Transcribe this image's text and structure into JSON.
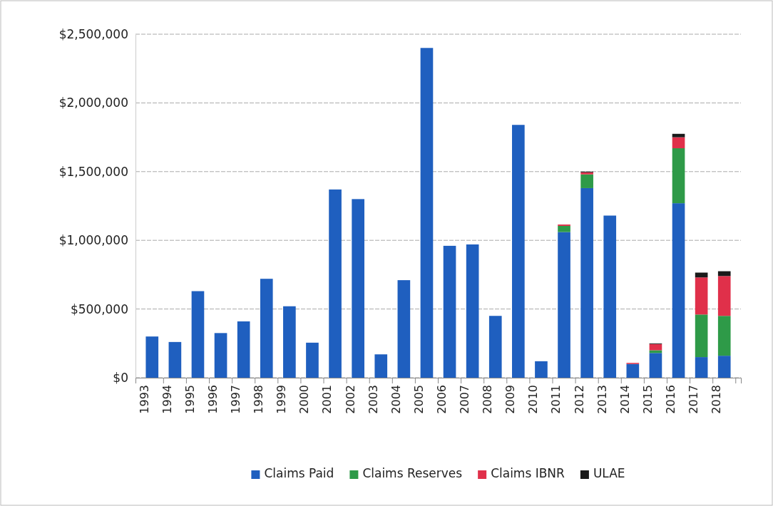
{
  "chart_data": {
    "type": "bar",
    "stacked": true,
    "categories": [
      "1993",
      "1994",
      "1995",
      "1996",
      "1997",
      "1998",
      "1999",
      "2000",
      "2001",
      "2002",
      "2003",
      "2004",
      "2005",
      "2006",
      "2007",
      "2008",
      "2009",
      "2010",
      "2011",
      "2012",
      "2013",
      "2014",
      "2015",
      "2016",
      "2017",
      "2018"
    ],
    "series": [
      {
        "name": "Claims Paid",
        "color": "#1f5fbf",
        "values": [
          300000,
          260000,
          630000,
          325000,
          410000,
          720000,
          520000,
          255000,
          1370000,
          1300000,
          170000,
          710000,
          2400000,
          960000,
          970000,
          450000,
          1840000,
          120000,
          1060000,
          1380000,
          1180000,
          100000,
          180000,
          1270000,
          150000,
          160000
        ]
      },
      {
        "name": "Claims Reserves",
        "color": "#2e9a48",
        "values": [
          0,
          0,
          0,
          0,
          0,
          0,
          0,
          0,
          0,
          0,
          0,
          0,
          0,
          0,
          0,
          0,
          0,
          0,
          45000,
          100000,
          0,
          0,
          20000,
          400000,
          310000,
          290000
        ]
      },
      {
        "name": "Claims IBNR",
        "color": "#e0304a",
        "values": [
          0,
          0,
          0,
          0,
          0,
          0,
          0,
          0,
          0,
          0,
          0,
          0,
          0,
          0,
          0,
          0,
          0,
          0,
          10000,
          15000,
          0,
          8000,
          45000,
          80000,
          270000,
          290000
        ]
      },
      {
        "name": "ULAE",
        "color": "#1a1a1a",
        "values": [
          0,
          0,
          0,
          0,
          0,
          0,
          0,
          0,
          0,
          0,
          0,
          0,
          0,
          0,
          0,
          0,
          0,
          0,
          0,
          5000,
          0,
          0,
          5000,
          25000,
          35000,
          35000
        ]
      }
    ],
    "ylim": [
      0,
      2500000
    ],
    "yticks": [
      {
        "value": 0,
        "label": "$0"
      },
      {
        "value": 500000,
        "label": "$500,000"
      },
      {
        "value": 1000000,
        "label": "$1,000,000"
      },
      {
        "value": 1500000,
        "label": "$1,500,000"
      },
      {
        "value": 2000000,
        "label": "$2,000,000"
      },
      {
        "value": 2500000,
        "label": "$2,500,000"
      }
    ],
    "grid": "y",
    "legend": "bottom"
  }
}
